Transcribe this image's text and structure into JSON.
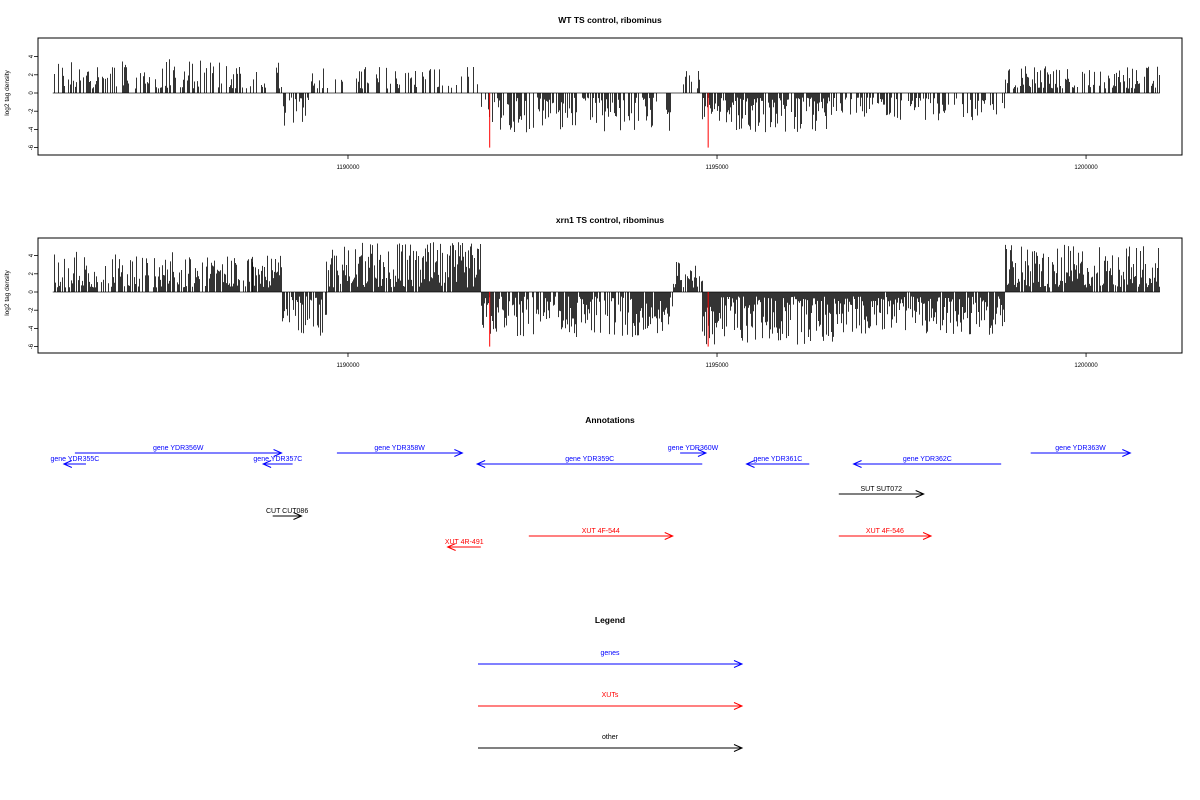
{
  "colors": {
    "genes": "#0000ff",
    "xuts": "#ff0000",
    "other": "#000000",
    "signal": "#000000",
    "baseline": "#555555"
  },
  "chart_data": [
    {
      "type": "bar",
      "title": "WT TS control, ribominus",
      "ylabel": "log2 tag density",
      "xlim": [
        1185800,
        1201300
      ],
      "ylim": [
        -6,
        6
      ],
      "x_ticks": [
        "1190000",
        "1195000",
        "1200000"
      ],
      "y_ticks": [
        "4",
        "2",
        "0",
        "-2",
        "-4",
        "-6"
      ],
      "grid": false,
      "segments": [
        {
          "x0": 1186000,
          "x1": 1189100,
          "min": 0.5,
          "max": 3.8,
          "density": 0.5,
          "sign": 1
        },
        {
          "x0": 1189100,
          "x1": 1189500,
          "min": 0.5,
          "max": 4.0,
          "density": 0.55,
          "sign": -1
        },
        {
          "x0": 1189500,
          "x1": 1191800,
          "min": 0.5,
          "max": 3.0,
          "density": 0.35,
          "sign": 1
        },
        {
          "x0": 1191800,
          "x1": 1194400,
          "min": 0.5,
          "max": 4.5,
          "density": 0.55,
          "sign": -1
        },
        {
          "x0": 1194400,
          "x1": 1194800,
          "min": 0.5,
          "max": 2.5,
          "density": 0.3,
          "sign": 1
        },
        {
          "x0": 1194800,
          "x1": 1196600,
          "min": 0.5,
          "max": 4.5,
          "density": 0.85,
          "sign": -1
        },
        {
          "x0": 1196600,
          "x1": 1198900,
          "min": 0.5,
          "max": 3.0,
          "density": 0.55,
          "sign": -1
        },
        {
          "x0": 1198900,
          "x1": 1201000,
          "min": 0.5,
          "max": 3.0,
          "density": 0.6,
          "sign": 1
        }
      ],
      "markers": [
        {
          "x": 1191920,
          "y": -6
        },
        {
          "x": 1194880,
          "y": -6
        }
      ]
    },
    {
      "type": "bar",
      "title": "xrn1 TS control, ribominus",
      "ylabel": "log2 tag density",
      "xlim": [
        1185800,
        1201300
      ],
      "ylim": [
        -6,
        6
      ],
      "x_ticks": [
        "1190000",
        "1195000",
        "1200000"
      ],
      "y_ticks": [
        "4",
        "2",
        "0",
        "-2",
        "-4",
        "-6"
      ],
      "grid": false,
      "segments": [
        {
          "x0": 1186000,
          "x1": 1188700,
          "min": 0.5,
          "max": 4.5,
          "density": 0.7,
          "sign": 1
        },
        {
          "x0": 1188700,
          "x1": 1189100,
          "min": 0.5,
          "max": 4.0,
          "density": 0.9,
          "sign": 1
        },
        {
          "x0": 1189100,
          "x1": 1189700,
          "min": 0.5,
          "max": 4.8,
          "density": 0.8,
          "sign": -1
        },
        {
          "x0": 1189700,
          "x1": 1191800,
          "min": 0.5,
          "max": 5.5,
          "density": 0.9,
          "sign": 1
        },
        {
          "x0": 1191800,
          "x1": 1194400,
          "min": 0.5,
          "max": 5.0,
          "density": 0.85,
          "sign": -1
        },
        {
          "x0": 1194400,
          "x1": 1194800,
          "min": 0.5,
          "max": 3.5,
          "density": 0.6,
          "sign": 1
        },
        {
          "x0": 1194800,
          "x1": 1196600,
          "min": 0.5,
          "max": 5.8,
          "density": 1.0,
          "sign": -1
        },
        {
          "x0": 1196600,
          "x1": 1198900,
          "min": 0.5,
          "max": 4.8,
          "density": 0.95,
          "sign": -1
        },
        {
          "x0": 1198900,
          "x1": 1201000,
          "min": 0.5,
          "max": 5.2,
          "density": 0.9,
          "sign": 1
        }
      ],
      "markers": [
        {
          "x": 1191920,
          "y": -6
        },
        {
          "x": 1194880,
          "y": -6
        }
      ]
    }
  ],
  "annotations": {
    "title": "Annotations",
    "features": [
      {
        "label": "gene YDR355C",
        "type": "gene",
        "start": 1186150,
        "end": 1186450,
        "strand": "-",
        "row": 2
      },
      {
        "label": "gene YDR356W",
        "type": "gene",
        "start": 1186300,
        "end": 1189100,
        "strand": "+",
        "row": 1
      },
      {
        "label": "gene YDR357C",
        "type": "gene",
        "start": 1188850,
        "end": 1189250,
        "strand": "-",
        "row": 2
      },
      {
        "label": "gene YDR358W",
        "type": "gene",
        "start": 1189850,
        "end": 1191550,
        "strand": "+",
        "row": 1
      },
      {
        "label": "gene YDR359C",
        "type": "gene",
        "start": 1191750,
        "end": 1194800,
        "strand": "-",
        "row": 2
      },
      {
        "label": "gene YDR360W",
        "type": "gene",
        "start": 1194500,
        "end": 1194850,
        "strand": "+",
        "row": 1
      },
      {
        "label": "gene YDR361C",
        "type": "gene",
        "start": 1195400,
        "end": 1196250,
        "strand": "-",
        "row": 2
      },
      {
        "label": "gene YDR362C",
        "type": "gene",
        "start": 1196850,
        "end": 1198850,
        "strand": "-",
        "row": 2
      },
      {
        "label": "gene YDR363W",
        "type": "gene",
        "start": 1199250,
        "end": 1200600,
        "strand": "+",
        "row": 1
      },
      {
        "label": "SUT SUT072",
        "type": "other",
        "start": 1196650,
        "end": 1197800,
        "strand": "+",
        "row": 3
      },
      {
        "label": "CUT CUT086",
        "type": "other",
        "start": 1188980,
        "end": 1189370,
        "strand": "+",
        "row": 4
      },
      {
        "label": "XUT 4F-544",
        "type": "xut",
        "start": 1192450,
        "end": 1194400,
        "strand": "+",
        "row": 5
      },
      {
        "label": "XUT 4F-546",
        "type": "xut",
        "start": 1196650,
        "end": 1197900,
        "strand": "+",
        "row": 5
      },
      {
        "label": "XUT 4R-491",
        "type": "xut",
        "start": 1191350,
        "end": 1191800,
        "strand": "-",
        "row": 6
      }
    ]
  },
  "legend": {
    "title": "Legend",
    "items": [
      {
        "label": "genes",
        "color": "#0000ff"
      },
      {
        "label": "XUTs",
        "color": "#ff0000"
      },
      {
        "label": "other",
        "color": "#000000"
      }
    ]
  }
}
